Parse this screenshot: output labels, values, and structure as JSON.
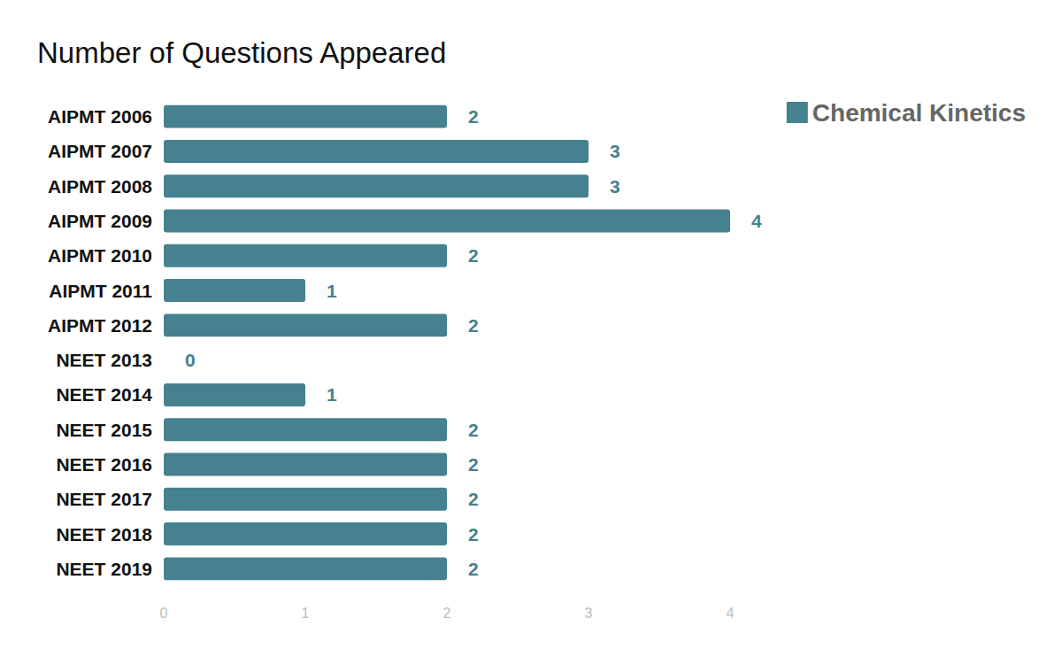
{
  "chart_data": {
    "type": "bar",
    "title": "Number of Questions Appeared",
    "orientation": "horizontal",
    "categories": [
      "AIPMT 2006",
      "AIPMT 2007",
      "AIPMT 2008",
      "AIPMT 2009",
      "AIPMT 2010",
      "AIPMT 2011",
      "AIPMT 2012",
      "NEET 2013",
      "NEET 2014",
      "NEET 2015",
      "NEET 2016",
      "NEET 2017",
      "NEET 2018",
      "NEET 2019"
    ],
    "series": [
      {
        "name": "Chemical Kinetics",
        "color": "#45818e",
        "values": [
          2,
          3,
          3,
          4,
          2,
          1,
          2,
          0,
          1,
          2,
          2,
          2,
          2,
          2
        ]
      }
    ],
    "xlim": [
      0,
      4
    ],
    "xticks": [
      0,
      1,
      2,
      3,
      4
    ],
    "grid": false,
    "legend": "top-right",
    "data_labels": true
  }
}
